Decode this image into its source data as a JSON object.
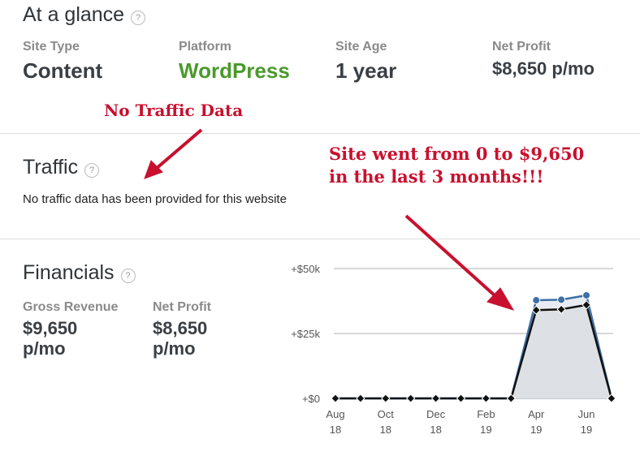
{
  "glance": {
    "title": "At a glance",
    "help": "?",
    "items": [
      {
        "label": "Site Type",
        "value": "Content"
      },
      {
        "label": "Platform",
        "value": "WordPress"
      },
      {
        "label": "Site Age",
        "value": "1 year"
      },
      {
        "label": "Net Profit",
        "value": "$8,650 p/mo"
      }
    ]
  },
  "traffic": {
    "title": "Traffic",
    "help": "?",
    "message": "No traffic data has been provided for this website"
  },
  "financials": {
    "title": "Financials",
    "help": "?",
    "gross_label": "Gross Revenue",
    "gross_value": "$9,650 p/mo",
    "net_label": "Net Profit",
    "net_value": "$8,650 p/mo"
  },
  "annotations": {
    "no_traffic": "No Traffic Data",
    "growth_1": "Site went from 0 to $9,650",
    "growth_2": "in the last 3 months!!!"
  },
  "colors": {
    "green": "#4a9a2a",
    "blue": "#3e6fa6",
    "red": "#c8102e"
  },
  "chart_data": {
    "type": "line",
    "x": [
      "Aug 18",
      "Sep 18",
      "Oct 18",
      "Nov 18",
      "Dec 18",
      "Jan 19",
      "Feb 19",
      "Mar 19",
      "Apr 19",
      "May 19",
      "Jun 19",
      "Jul 19"
    ],
    "x_tick_labels": [
      [
        "Aug",
        "18"
      ],
      [
        "Oct",
        "18"
      ],
      [
        "Dec",
        "18"
      ],
      [
        "Feb",
        "19"
      ],
      [
        "Apr",
        "19"
      ],
      [
        "Jun",
        "19"
      ]
    ],
    "y_tick_labels": [
      "+$0",
      "+$25k",
      "+$50k"
    ],
    "ylim": [
      0,
      50000
    ],
    "series": [
      {
        "name": "Gross Revenue",
        "color": "#3e6fa6",
        "values": [
          0,
          0,
          0,
          0,
          0,
          0,
          0,
          0,
          37800,
          38000,
          39700,
          0
        ]
      },
      {
        "name": "Net Profit",
        "color": "#111111",
        "values": [
          0,
          0,
          0,
          0,
          0,
          0,
          0,
          0,
          34000,
          34300,
          36000,
          0
        ]
      }
    ]
  }
}
